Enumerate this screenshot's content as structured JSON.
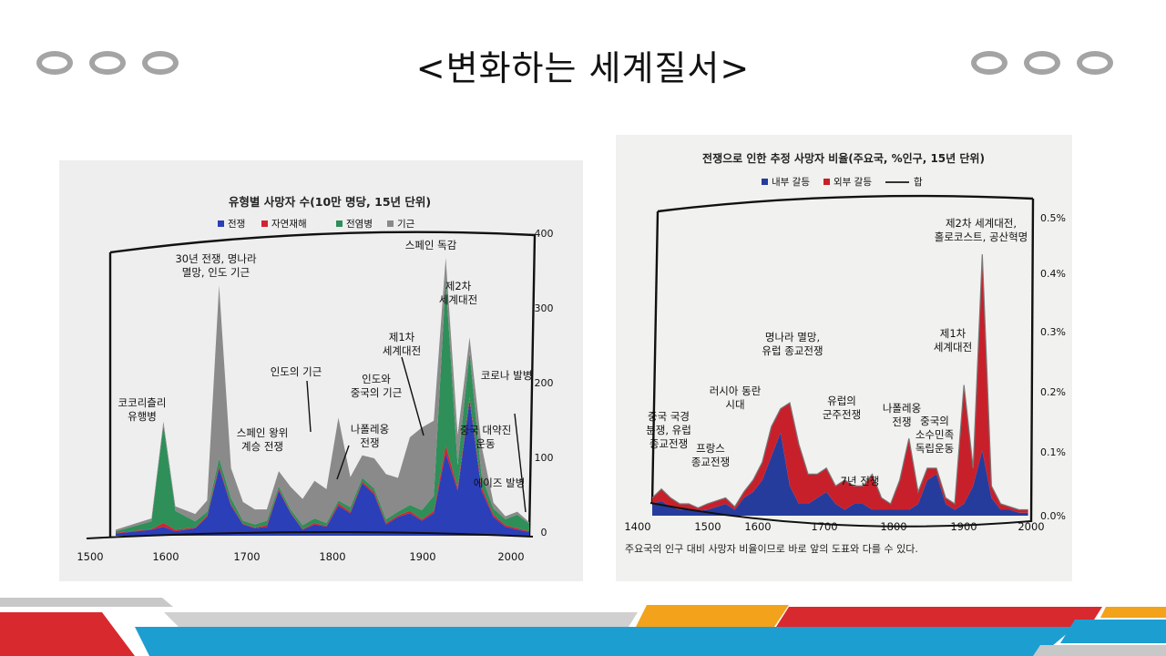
{
  "slide": {
    "title": "<변화하는 세계질서>"
  },
  "colors": {
    "war": "#2b3fb8",
    "disaster": "#d3232e",
    "epidemic": "#2e8f58",
    "famine": "#8a8a8a",
    "internal": "#263c9c",
    "external": "#c8202b",
    "paper_left": "#eeeeef",
    "paper_right": "#f1f1ef"
  },
  "chart_data": [
    {
      "type": "area",
      "title": "유형별 사망자 수(10만 명당, 15년 단위)",
      "legend": [
        "전쟁",
        "자연재해",
        "전염병",
        "기근"
      ],
      "x_ticks": [
        "1500",
        "1600",
        "1700",
        "1800",
        "1900",
        "2000"
      ],
      "y_ticks": [
        "0",
        "100",
        "200",
        "300",
        "400"
      ],
      "xlim": [
        1500,
        2020
      ],
      "ylim": [
        0,
        400
      ],
      "annotations": [
        "30년 전쟁, 명나라 멸망, 인도 기근",
        "코코리츨리 유행병",
        "스페인 왕위 계승 전쟁",
        "인도의 기근",
        "나폴레옹 전쟁",
        "인도와 중국의 기근",
        "제1차 세계대전",
        "스페인 독감",
        "제2차 세계대전",
        "중국 대약진 운동",
        "코로나 발병",
        "에이즈 발병"
      ],
      "x": [
        1500,
        1545,
        1560,
        1575,
        1600,
        1615,
        1630,
        1645,
        1660,
        1675,
        1690,
        1705,
        1720,
        1735,
        1750,
        1765,
        1780,
        1795,
        1810,
        1825,
        1840,
        1855,
        1870,
        1885,
        1900,
        1915,
        1930,
        1945,
        1960,
        1975,
        1990,
        2005,
        2020
      ],
      "series": [
        {
          "name": "전쟁",
          "values": [
            3,
            8,
            12,
            6,
            10,
            25,
            90,
            40,
            15,
            10,
            12,
            60,
            30,
            8,
            15,
            12,
            40,
            30,
            70,
            55,
            15,
            25,
            30,
            20,
            30,
            110,
            60,
            180,
            60,
            25,
            12,
            8,
            5
          ]
        },
        {
          "name": "자연재해",
          "values": [
            1,
            1,
            5,
            2,
            1,
            2,
            3,
            2,
            1,
            1,
            2,
            2,
            1,
            1,
            2,
            1,
            3,
            2,
            2,
            3,
            2,
            2,
            3,
            2,
            3,
            10,
            4,
            4,
            5,
            3,
            2,
            2,
            1
          ]
        },
        {
          "name": "전염병",
          "values": [
            2,
            10,
            130,
            25,
            8,
            5,
            10,
            8,
            4,
            4,
            6,
            4,
            4,
            5,
            6,
            4,
            4,
            6,
            5,
            5,
            5,
            5,
            8,
            12,
            20,
            220,
            30,
            60,
            15,
            8,
            8,
            18,
            10
          ]
        },
        {
          "name": "기근",
          "values": [
            2,
            4,
            5,
            6,
            10,
            15,
            230,
            40,
            25,
            20,
            15,
            20,
            30,
            35,
            50,
            45,
            110,
            40,
            30,
            40,
            60,
            45,
            90,
            110,
            100,
            30,
            40,
            20,
            40,
            8,
            4,
            4,
            2
          ]
        }
      ]
    },
    {
      "type": "area",
      "title": "전쟁으로 인한 추정 사망자 비율(주요국, %인구, 15년 단위)",
      "legend": [
        "내부 갈등",
        "외부 갈등",
        "합"
      ],
      "x_ticks": [
        "1400",
        "1500",
        "1600",
        "1700",
        "1800",
        "1900",
        "2000"
      ],
      "y_ticks": [
        "0.0%",
        "0.1%",
        "0.2%",
        "0.3%",
        "0.4%",
        "0.5%"
      ],
      "xlim": [
        1400,
        2020
      ],
      "ylim": [
        0,
        0.5
      ],
      "annotations": [
        "중국 국경 분쟁, 유럽 종교전쟁",
        "프랑스 종교전쟁",
        "러시아 동란 시대",
        "명나라 멸망, 유럽 종교전쟁",
        "유럽의 군주전쟁",
        "7년 전쟁",
        "나폴레옹 전쟁",
        "중국의 소수민족 독립운동",
        "제1차 세계대전",
        "제2차 세계대전, 홀로코스트, 공산혁명"
      ],
      "footnote": "주요국의 인구 대비 사망자 비율이므로 바로 앞의 도표와 다를 수 있다.",
      "x": [
        1400,
        1415,
        1430,
        1445,
        1460,
        1475,
        1490,
        1505,
        1520,
        1535,
        1550,
        1565,
        1580,
        1595,
        1610,
        1625,
        1640,
        1655,
        1670,
        1685,
        1700,
        1715,
        1730,
        1745,
        1760,
        1775,
        1790,
        1805,
        1820,
        1835,
        1850,
        1865,
        1880,
        1895,
        1910,
        1925,
        1940,
        1955,
        1970,
        1985,
        2000,
        2015
      ],
      "series": [
        {
          "name": "내부 갈등",
          "values": [
            0.02,
            0.025,
            0.015,
            0.01,
            0.012,
            0.008,
            0.01,
            0.015,
            0.02,
            0.01,
            0.03,
            0.04,
            0.06,
            0.1,
            0.14,
            0.05,
            0.02,
            0.02,
            0.03,
            0.04,
            0.02,
            0.01,
            0.02,
            0.02,
            0.01,
            0.01,
            0.01,
            0.01,
            0.01,
            0.02,
            0.06,
            0.07,
            0.02,
            0.01,
            0.02,
            0.05,
            0.11,
            0.03,
            0.01,
            0.01,
            0.005,
            0.005
          ]
        },
        {
          "name": "외부 갈등",
          "values": [
            0.01,
            0.02,
            0.015,
            0.01,
            0.008,
            0.005,
            0.01,
            0.01,
            0.01,
            0.005,
            0.01,
            0.02,
            0.03,
            0.05,
            0.04,
            0.14,
            0.1,
            0.05,
            0.04,
            0.04,
            0.03,
            0.05,
            0.03,
            0.03,
            0.06,
            0.02,
            0.01,
            0.05,
            0.12,
            0.02,
            0.02,
            0.01,
            0.01,
            0.01,
            0.2,
            0.03,
            0.33,
            0.02,
            0.01,
            0.005,
            0.005,
            0.005
          ]
        },
        {
          "name": "합",
          "values": [
            0.03,
            0.045,
            0.03,
            0.02,
            0.02,
            0.013,
            0.02,
            0.025,
            0.03,
            0.015,
            0.04,
            0.06,
            0.09,
            0.15,
            0.18,
            0.19,
            0.12,
            0.07,
            0.07,
            0.08,
            0.05,
            0.06,
            0.05,
            0.05,
            0.07,
            0.03,
            0.02,
            0.06,
            0.13,
            0.04,
            0.08,
            0.08,
            0.03,
            0.02,
            0.22,
            0.08,
            0.44,
            0.05,
            0.02,
            0.015,
            0.01,
            0.01
          ]
        }
      ]
    }
  ]
}
